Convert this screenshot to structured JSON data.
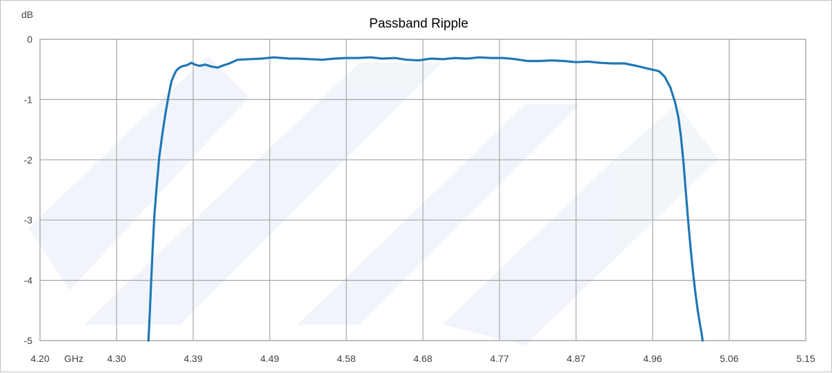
{
  "chart_data": {
    "type": "line",
    "title": "Passband Ripple",
    "ylabel": "dB",
    "xlabel": "GHz",
    "xlim": [
      4.2,
      5.15
    ],
    "ylim": [
      -5,
      0
    ],
    "x_ticks": [
      "4.20",
      "4.30",
      "4.39",
      "4.49",
      "4.58",
      "4.68",
      "4.77",
      "4.87",
      "4.96",
      "5.06",
      "5.15"
    ],
    "y_ticks": [
      "0",
      "-1",
      "-2",
      "-3",
      "-4",
      "-5"
    ],
    "grid": true,
    "colors": {
      "line": "#1f77b4",
      "grid": "#a6a6a6",
      "watermark": "#e6eef8"
    },
    "series": [
      {
        "x": [
          4.3345,
          4.336,
          4.338,
          4.34,
          4.342,
          4.345,
          4.348,
          4.352,
          4.356,
          4.36,
          4.363,
          4.366,
          4.369,
          4.372,
          4.376,
          4.382,
          4.388,
          4.392,
          4.398,
          4.405,
          4.412,
          4.42,
          4.428,
          4.435,
          4.445,
          4.46,
          4.475,
          4.49,
          4.5,
          4.51,
          4.52,
          4.535,
          4.55,
          4.565,
          4.58,
          4.595,
          4.61,
          4.625,
          4.64,
          4.655,
          4.67,
          4.685,
          4.7,
          4.715,
          4.73,
          4.745,
          4.76,
          4.775,
          4.79,
          4.805,
          4.82,
          4.835,
          4.85,
          4.865,
          4.88,
          4.895,
          4.91,
          4.925,
          4.94,
          4.955,
          4.962,
          4.968,
          4.975,
          4.982,
          4.988,
          4.992,
          4.995,
          4.998,
          5.001,
          5.004,
          5.007,
          5.01,
          5.013,
          5.016,
          5.019,
          5.021,
          5.022
        ],
        "y": [
          -5.0,
          -4.6,
          -4.0,
          -3.4,
          -2.9,
          -2.4,
          -1.95,
          -1.55,
          -1.2,
          -0.9,
          -0.7,
          -0.6,
          -0.52,
          -0.48,
          -0.45,
          -0.43,
          -0.39,
          -0.42,
          -0.44,
          -0.42,
          -0.45,
          -0.47,
          -0.43,
          -0.4,
          -0.34,
          -0.33,
          -0.32,
          -0.3,
          -0.31,
          -0.32,
          -0.32,
          -0.33,
          -0.34,
          -0.32,
          -0.31,
          -0.31,
          -0.3,
          -0.32,
          -0.31,
          -0.34,
          -0.35,
          -0.32,
          -0.33,
          -0.31,
          -0.32,
          -0.3,
          -0.31,
          -0.31,
          -0.33,
          -0.36,
          -0.36,
          -0.35,
          -0.36,
          -0.38,
          -0.37,
          -0.39,
          -0.4,
          -0.4,
          -0.44,
          -0.49,
          -0.51,
          -0.53,
          -0.62,
          -0.8,
          -1.05,
          -1.3,
          -1.6,
          -2.0,
          -2.5,
          -3.0,
          -3.45,
          -3.85,
          -4.2,
          -4.5,
          -4.75,
          -4.9,
          -5.0
        ]
      }
    ]
  }
}
